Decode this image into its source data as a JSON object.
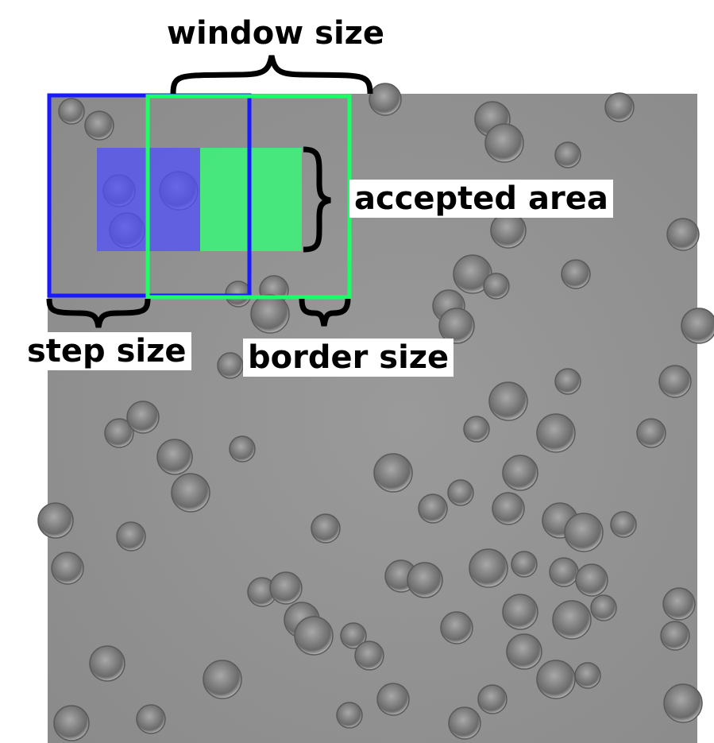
{
  "labels": {
    "window_size": "window  size",
    "accepted_area": "accepted area",
    "step_size": "step size",
    "border_size": "border size"
  },
  "colors": {
    "step_window": "#1a1aff",
    "sliding_window": "#1aff66",
    "accepted_area_blue": "#4d4dff",
    "accepted_area_green": "#33ff77",
    "micrograph_background": "#8f8f8f",
    "cell": "#7a7a7a"
  },
  "image": {
    "content": "brightfield micrograph of round cells"
  }
}
